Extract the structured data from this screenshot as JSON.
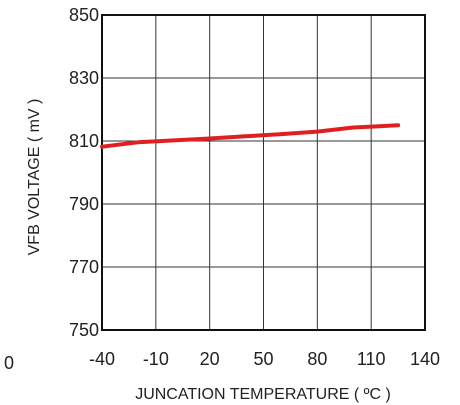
{
  "chart_data": {
    "type": "line",
    "xlabel": "JUNCATION TEMPERATURE ( ºC )",
    "ylabel": "VFB VOLTAGE ( mV )",
    "xlim": [
      -40,
      140
    ],
    "ylim": [
      750,
      850
    ],
    "x_ticks": [
      "-40",
      "-10",
      "20",
      "50",
      "80",
      "110",
      "140"
    ],
    "y_ticks": [
      "850",
      "830",
      "810",
      "790",
      "770",
      "750"
    ],
    "stray_label": "0",
    "grid": true,
    "series": [
      {
        "color": "#e02020",
        "x": [
          -40,
          -20,
          0,
          20,
          40,
          60,
          80,
          100,
          125
        ],
        "y": [
          808.2,
          809.6,
          810.2,
          810.8,
          811.5,
          812.2,
          813.0,
          814.3,
          815.0
        ]
      }
    ]
  }
}
